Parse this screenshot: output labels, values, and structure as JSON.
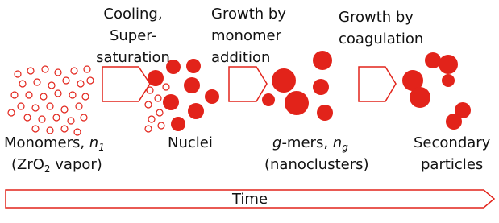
{
  "steps": [
    {
      "lines": [
        "Cooling,",
        "Super-",
        "saturation"
      ]
    },
    {
      "lines": [
        "Growth by",
        "monomer",
        "addition"
      ]
    },
    {
      "lines": [
        "Growth by",
        "coagulation"
      ]
    }
  ],
  "stages": [
    {
      "lines": [
        [
          {
            "text": "Monomers, ",
            "style": "normal"
          },
          {
            "text": "n",
            "style": "italic"
          },
          {
            "text": "1",
            "style": "italic-sub"
          }
        ],
        [
          {
            "text": "(ZrO",
            "style": "normal"
          },
          {
            "text": "2",
            "style": "sub"
          },
          {
            "text": " vapor)",
            "style": "normal"
          }
        ]
      ]
    },
    {
      "lines": [
        [
          {
            "text": "Nuclei",
            "style": "normal"
          }
        ]
      ]
    },
    {
      "lines": [
        [
          {
            "text": "g",
            "style": "italic"
          },
          {
            "text": "-mers, ",
            "style": "normal"
          },
          {
            "text": "n",
            "style": "italic"
          },
          {
            "text": "g",
            "style": "italic-sub"
          }
        ],
        [
          {
            "text": "(nanoclusters)",
            "style": "normal"
          }
        ]
      ]
    },
    {
      "lines": [
        [
          {
            "text": "Secondary",
            "style": "normal"
          }
        ],
        [
          {
            "text": "particles",
            "style": "normal"
          }
        ]
      ]
    }
  ],
  "timeline": {
    "label": "Time"
  }
}
